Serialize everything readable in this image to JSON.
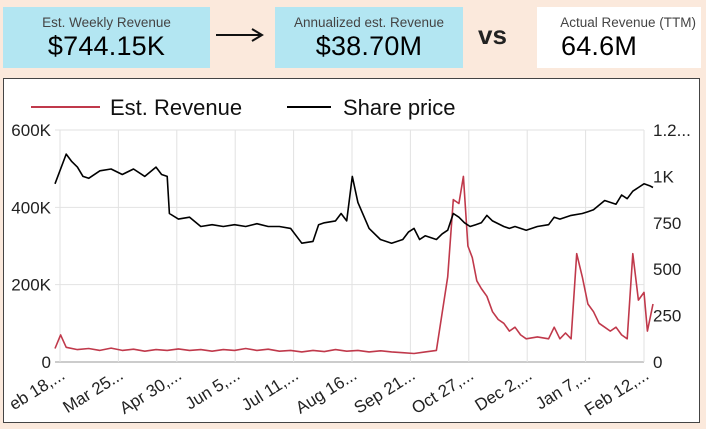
{
  "cards": {
    "weekly": {
      "label": "Est. Weekly Revenue",
      "value": "$744.15K"
    },
    "annual": {
      "label": "Annualized est. Revenue",
      "value": "$38.70M"
    },
    "vs": "vs",
    "actual": {
      "label": "Actual Revenue (TTM)",
      "value": "64.6M"
    }
  },
  "colors": {
    "revenue": "#c0394b",
    "price": "#000000"
  },
  "chart_data": {
    "type": "line",
    "legend": [
      "Est. Revenue",
      "Share price"
    ],
    "legend_position": "top",
    "grid": true,
    "x_tick_labels": [
      "eb 18,...",
      "Mar 25...",
      "Apr 30,...",
      "Jun 5,...",
      "Jul 11,...",
      "Aug 16...",
      "Sep 21...",
      "Oct 27,...",
      "Dec 2,...",
      "Jan 7,...",
      "Feb 12,..."
    ],
    "y_left_ticks": [
      "0",
      "200K",
      "400K",
      "600K"
    ],
    "y_left_lim": [
      0,
      600000
    ],
    "y_right_ticks": [
      "0",
      "250",
      "500",
      "750",
      "1K",
      "1.2..."
    ],
    "y_right_lim": [
      0,
      1250
    ],
    "x_range_weeks": [
      0,
      52.5
    ],
    "series": [
      {
        "name": "Est. Revenue",
        "axis": "left",
        "points": [
          [
            0,
            35000
          ],
          [
            0.5,
            70000
          ],
          [
            1,
            38000
          ],
          [
            2,
            32000
          ],
          [
            3,
            35000
          ],
          [
            4,
            30000
          ],
          [
            5,
            36000
          ],
          [
            6,
            30000
          ],
          [
            7,
            33000
          ],
          [
            8,
            28000
          ],
          [
            9,
            32000
          ],
          [
            10,
            30000
          ],
          [
            11,
            34000
          ],
          [
            12,
            30000
          ],
          [
            13,
            32000
          ],
          [
            14,
            28000
          ],
          [
            15,
            32000
          ],
          [
            16,
            30000
          ],
          [
            17,
            35000
          ],
          [
            18,
            30000
          ],
          [
            19,
            33000
          ],
          [
            20,
            28000
          ],
          [
            21,
            30000
          ],
          [
            22,
            26000
          ],
          [
            23,
            30000
          ],
          [
            24,
            27000
          ],
          [
            25,
            32000
          ],
          [
            26,
            28000
          ],
          [
            27,
            30000
          ],
          [
            28,
            26000
          ],
          [
            29,
            29000
          ],
          [
            30,
            26000
          ],
          [
            31,
            24000
          ],
          [
            32,
            22000
          ],
          [
            33,
            26000
          ],
          [
            34,
            30000
          ],
          [
            35,
            220000
          ],
          [
            35.5,
            420000
          ],
          [
            36,
            410000
          ],
          [
            36.4,
            480000
          ],
          [
            36.8,
            300000
          ],
          [
            37.2,
            270000
          ],
          [
            37.6,
            210000
          ],
          [
            38,
            190000
          ],
          [
            38.5,
            170000
          ],
          [
            39,
            130000
          ],
          [
            39.5,
            110000
          ],
          [
            40,
            100000
          ],
          [
            40.5,
            80000
          ],
          [
            41,
            90000
          ],
          [
            41.5,
            70000
          ],
          [
            42,
            60000
          ],
          [
            43,
            65000
          ],
          [
            44,
            60000
          ],
          [
            44.5,
            90000
          ],
          [
            45,
            60000
          ],
          [
            45.5,
            75000
          ],
          [
            46,
            60000
          ],
          [
            46.5,
            280000
          ],
          [
            47,
            220000
          ],
          [
            47.5,
            150000
          ],
          [
            48,
            130000
          ],
          [
            48.5,
            100000
          ],
          [
            49,
            90000
          ],
          [
            49.5,
            80000
          ],
          [
            50,
            90000
          ],
          [
            50.5,
            70000
          ],
          [
            51,
            60000
          ],
          [
            51.5,
            280000
          ],
          [
            52,
            160000
          ],
          [
            52.5,
            180000
          ],
          [
            52.8,
            80000
          ],
          [
            53.3,
            150000
          ]
        ]
      },
      {
        "name": "Share price",
        "axis": "right",
        "points": [
          [
            0,
            960
          ],
          [
            1,
            1120
          ],
          [
            1.5,
            1080
          ],
          [
            2,
            1050
          ],
          [
            2.5,
            1000
          ],
          [
            3,
            990
          ],
          [
            4,
            1030
          ],
          [
            5,
            1040
          ],
          [
            6,
            1010
          ],
          [
            7,
            1040
          ],
          [
            8,
            1000
          ],
          [
            9,
            1050
          ],
          [
            9.5,
            1010
          ],
          [
            10,
            1000
          ],
          [
            10.2,
            800
          ],
          [
            11,
            770
          ],
          [
            12,
            780
          ],
          [
            13,
            730
          ],
          [
            14,
            740
          ],
          [
            15,
            730
          ],
          [
            16,
            740
          ],
          [
            17,
            730
          ],
          [
            18,
            745
          ],
          [
            19,
            730
          ],
          [
            20,
            730
          ],
          [
            21,
            720
          ],
          [
            22,
            640
          ],
          [
            23,
            650
          ],
          [
            23.5,
            740
          ],
          [
            24,
            750
          ],
          [
            25,
            760
          ],
          [
            25.5,
            800
          ],
          [
            26,
            760
          ],
          [
            26.5,
            1000
          ],
          [
            27,
            860
          ],
          [
            27.5,
            790
          ],
          [
            28,
            720
          ],
          [
            29,
            660
          ],
          [
            30,
            640
          ],
          [
            31,
            660
          ],
          [
            31.5,
            700
          ],
          [
            32,
            720
          ],
          [
            32.5,
            660
          ],
          [
            33,
            680
          ],
          [
            34,
            660
          ],
          [
            34.5,
            690
          ],
          [
            35,
            710
          ],
          [
            35.5,
            800
          ],
          [
            36,
            780
          ],
          [
            36.5,
            750
          ],
          [
            37,
            730
          ],
          [
            37.5,
            740
          ],
          [
            38,
            750
          ],
          [
            38.5,
            790
          ],
          [
            39,
            760
          ],
          [
            40,
            730
          ],
          [
            40.5,
            720
          ],
          [
            41,
            730
          ],
          [
            42,
            710
          ],
          [
            43,
            730
          ],
          [
            44,
            740
          ],
          [
            44.5,
            780
          ],
          [
            45,
            770
          ],
          [
            46,
            790
          ],
          [
            47,
            800
          ],
          [
            47.5,
            810
          ],
          [
            48,
            820
          ],
          [
            49,
            870
          ],
          [
            50,
            850
          ],
          [
            50.5,
            900
          ],
          [
            51,
            880
          ],
          [
            51.5,
            920
          ],
          [
            52,
            940
          ],
          [
            52.5,
            960
          ],
          [
            53,
            950
          ],
          [
            53.3,
            940
          ]
        ]
      }
    ]
  }
}
